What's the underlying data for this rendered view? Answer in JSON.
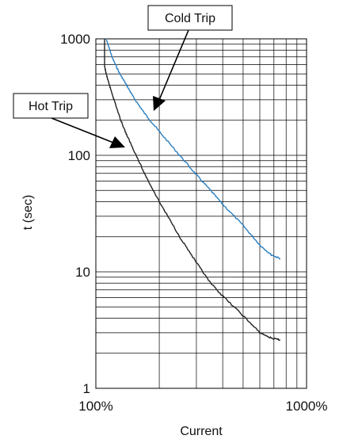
{
  "chart_data": {
    "type": "line",
    "xlabel": "Current",
    "ylabel": "t (sec)",
    "xscale": "log",
    "yscale": "log",
    "xlim": [
      100,
      1000
    ],
    "ylim": [
      1,
      1000
    ],
    "x_tick_labels": [
      "100%",
      "1000%"
    ],
    "y_tick_labels": [
      "1",
      "10",
      "100",
      "1000"
    ],
    "grid": true,
    "series": [
      {
        "name": "Cold Trip",
        "color": "#2a7fc1",
        "points": [
          [
            112,
            1000
          ],
          [
            115,
            860
          ],
          [
            120,
            680
          ],
          [
            130,
            500
          ],
          [
            140,
            400
          ],
          [
            150,
            320
          ],
          [
            170,
            230
          ],
          [
            200,
            160
          ],
          [
            250,
            100
          ],
          [
            300,
            68
          ],
          [
            350,
            50
          ],
          [
            400,
            38
          ],
          [
            500,
            25
          ],
          [
            600,
            17
          ],
          [
            680,
            14
          ],
          [
            750,
            13
          ]
        ]
      },
      {
        "name": "Hot Trip",
        "color": "#222222",
        "points": [
          [
            110,
            1000
          ],
          [
            110,
            580
          ],
          [
            112,
            500
          ],
          [
            115,
            420
          ],
          [
            120,
            330
          ],
          [
            130,
            210
          ],
          [
            140,
            150
          ],
          [
            150,
            115
          ],
          [
            170,
            70
          ],
          [
            200,
            40
          ],
          [
            250,
            20
          ],
          [
            300,
            12
          ],
          [
            350,
            8
          ],
          [
            400,
            6.2
          ],
          [
            500,
            4.2
          ],
          [
            600,
            3
          ],
          [
            680,
            2.7
          ],
          [
            750,
            2.6
          ]
        ]
      }
    ],
    "annotations": [
      {
        "text": "Cold Trip",
        "target_series": "Cold Trip"
      },
      {
        "text": "Hot Trip",
        "target_series": "Hot Trip"
      }
    ]
  }
}
